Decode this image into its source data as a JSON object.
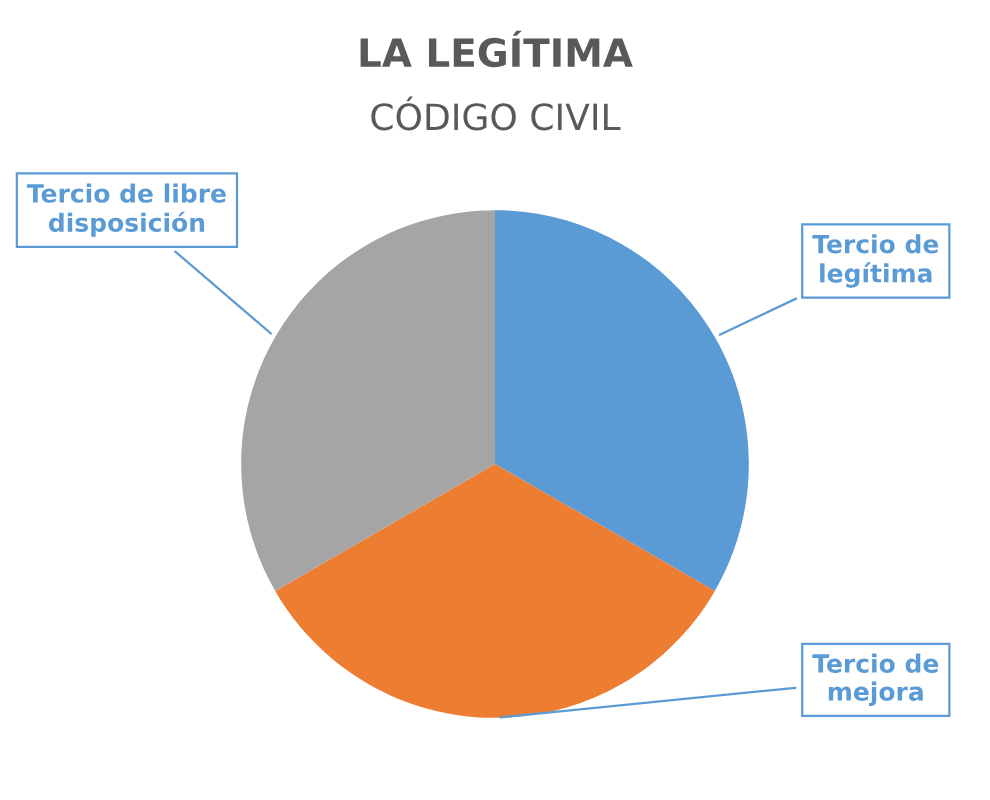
{
  "chart_data": {
    "type": "pie",
    "title": "LA LEGÍTIMA",
    "subtitle": "CÓDIGO CIVIL",
    "categories": [
      "Tercio de\nlegítima",
      "Tercio de\nmejora",
      "Tercio de libre\ndisposición"
    ],
    "values": [
      33.33,
      33.33,
      33.34
    ],
    "colors": [
      "#5b9bd5",
      "#ed7d31",
      "#a5a5a5"
    ],
    "legend": false
  }
}
